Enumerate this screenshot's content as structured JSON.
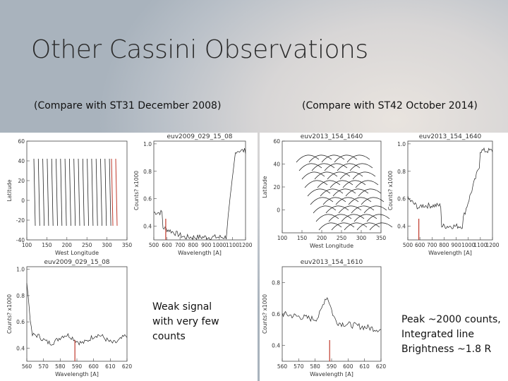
{
  "header": {
    "title": "Other Cassini Observations"
  },
  "columns": [
    {
      "caption": "(Compare with ST31 December 2008)",
      "note": [
        "Weak signal",
        "with very few",
        "counts"
      ],
      "panels": [
        {
          "xlabel": "West Longitude",
          "ylabel": "Latitude",
          "xlim": [
            100,
            350
          ],
          "ylim": [
            -40,
            60
          ],
          "xticks": [
            100,
            150,
            200,
            250,
            300,
            350
          ],
          "yticks": [
            60,
            40,
            20,
            0,
            -20,
            -40
          ]
        },
        {
          "title": "euv2009_029_15_08",
          "xlabel": "Wavelength [A]",
          "ylabel": "Counts? x1000",
          "xlim": [
            500,
            1200
          ],
          "ylim": [
            0.3,
            1.02
          ],
          "xticks": [
            500,
            600,
            700,
            800,
            900,
            1000,
            1100,
            1200
          ],
          "yticks": [
            {
              "value": 1,
              "label": "1.0"
            },
            0.8,
            0.6,
            0.4
          ]
        },
        {
          "title": "euv2009_029_15_08",
          "xlabel": "Wavelength [A]",
          "ylabel": "Counts? x1000",
          "xlim": [
            560,
            620
          ],
          "ylim": [
            0.3,
            1.02
          ],
          "xticks": [
            560,
            570,
            580,
            590,
            600,
            610,
            620
          ],
          "yticks": [
            {
              "value": 1,
              "label": "1.0"
            },
            0.8,
            0.6,
            0.4
          ]
        }
      ]
    },
    {
      "caption": "(Compare with ST42 October 2014)",
      "note": [
        "Peak ~2000 counts,",
        "Integrated line",
        "Brightness ~1.8 R"
      ],
      "panels": [
        {
          "title": "euv2013_154_1640",
          "xlabel": "West Longitude",
          "ylabel": "Latitude",
          "xlim": [
            100,
            350
          ],
          "ylim": [
            -20,
            60
          ],
          "xticks": [
            100,
            150,
            200,
            250,
            300,
            350
          ],
          "yticks": [
            60,
            40,
            20,
            0
          ]
        },
        {
          "title": "euv2013_154_1640",
          "xlabel": "Wavelength [A]",
          "ylabel": "Counts? x1000",
          "xlim": [
            500,
            1200
          ],
          "ylim": [
            0.3,
            1.02
          ],
          "xticks": [
            500,
            600,
            700,
            800,
            900,
            1000,
            1100,
            1200
          ],
          "yticks": [
            {
              "value": 1,
              "label": "1.0"
            },
            0.8,
            0.6,
            0.4
          ]
        },
        {
          "title": "euv2013_154_1610",
          "xlabel": "Wavelength [A]",
          "ylabel": "Counts? x1000",
          "xlim": [
            560,
            620
          ],
          "ylim": [
            0.3,
            0.9
          ],
          "xticks": [
            560,
            570,
            580,
            590,
            600,
            610,
            620
          ],
          "yticks": [
            0.8,
            0.6,
            0.4
          ]
        }
      ]
    }
  ]
}
